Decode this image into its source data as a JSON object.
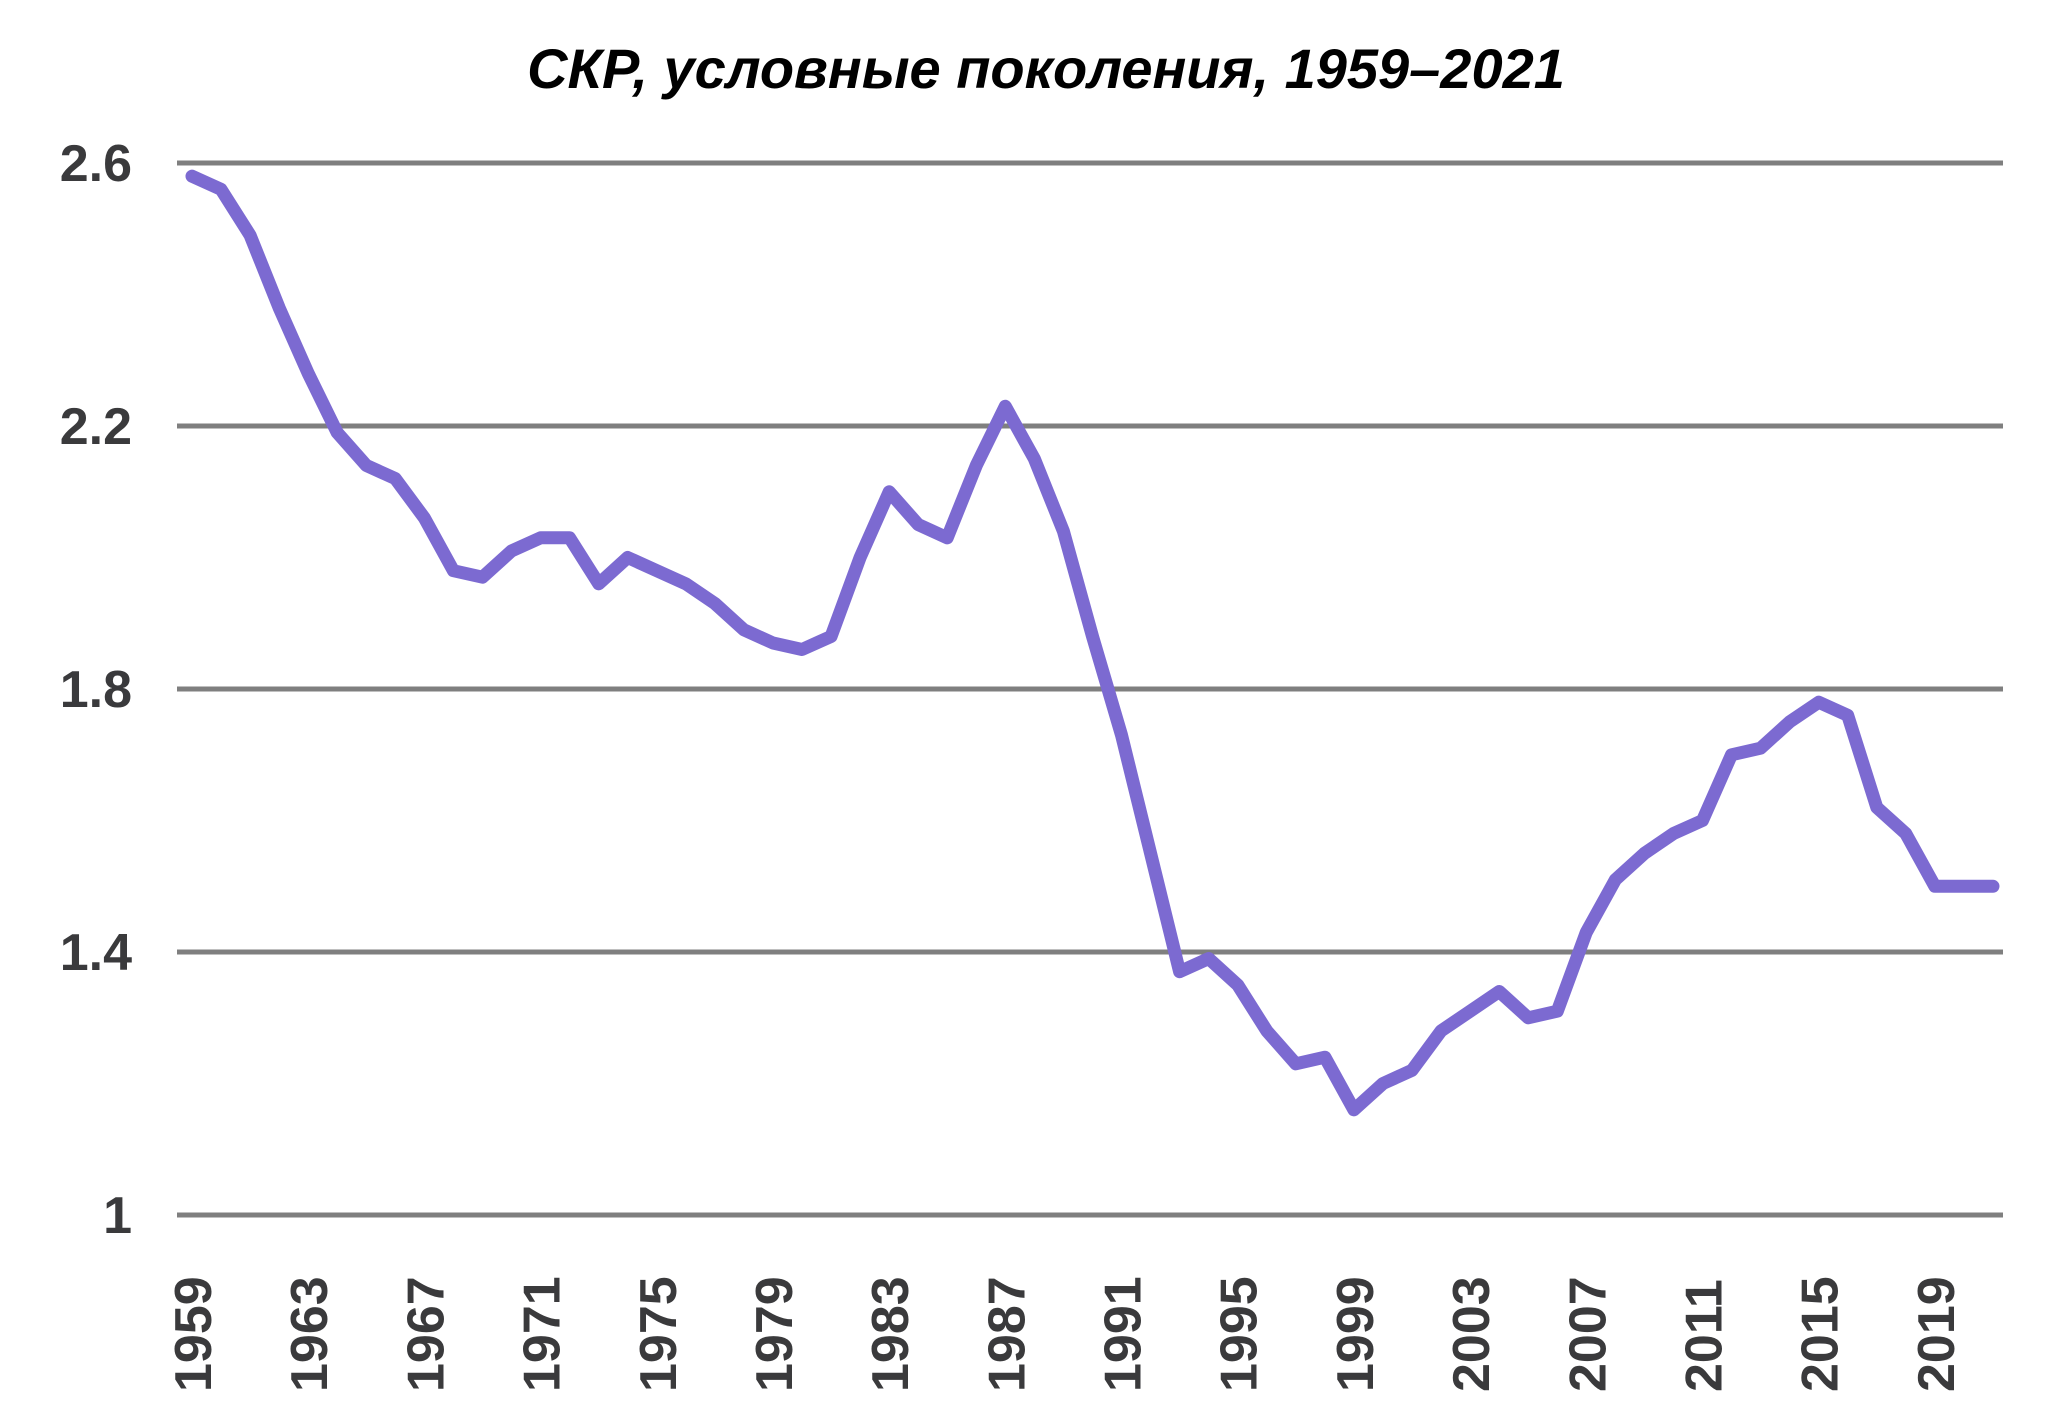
{
  "chart_data": {
    "type": "line",
    "title": "СКР, условные поколения, 1959–2021",
    "xlabel": "",
    "ylabel": "",
    "x": [
      1959,
      1960,
      1961,
      1962,
      1963,
      1964,
      1965,
      1966,
      1967,
      1968,
      1969,
      1970,
      1971,
      1972,
      1973,
      1974,
      1975,
      1976,
      1977,
      1978,
      1979,
      1980,
      1981,
      1982,
      1983,
      1984,
      1985,
      1986,
      1987,
      1988,
      1989,
      1990,
      1991,
      1992,
      1993,
      1994,
      1995,
      1996,
      1997,
      1998,
      1999,
      2000,
      2001,
      2002,
      2003,
      2004,
      2005,
      2006,
      2007,
      2008,
      2009,
      2010,
      2011,
      2012,
      2013,
      2014,
      2015,
      2016,
      2017,
      2018,
      2019,
      2020,
      2021
    ],
    "series": [
      {
        "name": "СКР",
        "values": [
          2.58,
          2.56,
          2.49,
          2.38,
          2.28,
          2.19,
          2.14,
          2.12,
          2.06,
          1.98,
          1.97,
          2.01,
          2.03,
          2.03,
          1.96,
          2.0,
          1.98,
          1.96,
          1.93,
          1.89,
          1.87,
          1.86,
          1.88,
          2.0,
          2.1,
          2.05,
          2.03,
          2.14,
          2.23,
          2.15,
          2.04,
          1.88,
          1.73,
          1.55,
          1.37,
          1.39,
          1.35,
          1.28,
          1.23,
          1.24,
          1.16,
          1.2,
          1.22,
          1.28,
          1.31,
          1.34,
          1.3,
          1.31,
          1.43,
          1.51,
          1.55,
          1.58,
          1.6,
          1.7,
          1.71,
          1.75,
          1.78,
          1.76,
          1.62,
          1.58,
          1.5,
          1.5,
          1.5
        ]
      }
    ],
    "x_ticks": [
      1959,
      1963,
      1967,
      1971,
      1975,
      1979,
      1983,
      1987,
      1991,
      1995,
      1999,
      2003,
      2007,
      2011,
      2015,
      2019
    ],
    "y_ticks": [
      "2.6",
      "2.2",
      "1.8",
      "1.4",
      "1"
    ],
    "y_tick_values": [
      2.6,
      2.2,
      1.8,
      1.4,
      1
    ],
    "xlim": [
      1959,
      2021
    ],
    "ylim": [
      1.0,
      2.65
    ],
    "grid": "horizontal",
    "legend": "none",
    "colors": {
      "line": "#7C6AD1",
      "grid": "#7F7F7F",
      "text": "#3A3A3C",
      "background": "#FFFFFF"
    }
  }
}
